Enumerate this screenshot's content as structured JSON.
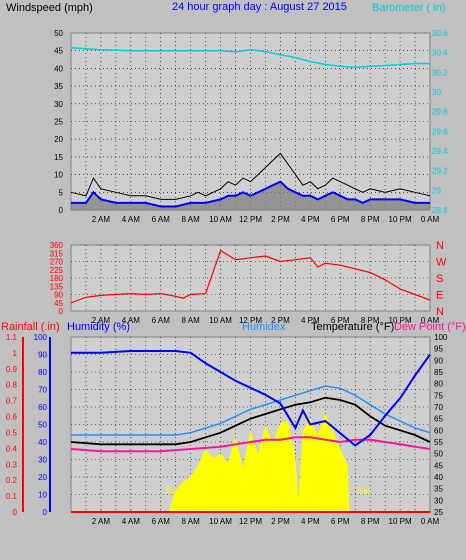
{
  "colors": {
    "background": "#c0c0c0",
    "plot_bg": "#cfcfcf",
    "frame": "#808080",
    "wind_gust": "#000000",
    "wind_avg": "#0000ff",
    "wind_fill": "#7a7a7a",
    "barometer": "#00ced1",
    "direction": "#ff0000",
    "humidity": "#0000ff",
    "humidex": "#1e90ff",
    "temperature": "#000000",
    "dewpoint": "#ff1493",
    "rain": "#ff0000",
    "sun": "#ffff00"
  },
  "header": {
    "left": "Windspeed (mph)",
    "center": "24 hour graph day : August 27 2015",
    "right": "Barometer ( in)"
  },
  "bottom_header": {
    "rainfall": "Rainfall (.in)",
    "humidity": "Humidity (%)",
    "humidex": "Humidex",
    "temperature": "Temperature (°F)",
    "dewpoint": "Dew Point (°F)"
  },
  "annotations": {
    "sunrise": "Sun Rise",
    "sunset": "Set"
  },
  "time_labels": [
    "2 AM",
    "4 AM",
    "6 AM",
    "8 AM",
    "10 AM",
    "12 PM",
    "2 PM",
    "4 PM",
    "6 PM",
    "8 PM",
    "10 PM",
    "0 AM"
  ],
  "chart_data": [
    {
      "type": "line",
      "title": "24 hour graph day : August 27 2015",
      "x_unit": "hours since 0 AM",
      "xlim": [
        0,
        24
      ],
      "left_axis": {
        "label": "Windspeed (mph)",
        "ticks": [
          0,
          5,
          10,
          15,
          20,
          25,
          30,
          35,
          40,
          45,
          50
        ],
        "ylim": [
          0,
          50
        ]
      },
      "right_axis": {
        "label": "Barometer ( in)",
        "ticks": [
          "28.8",
          "29",
          "29.2",
          "29.4",
          "29.6",
          "29.8",
          "30",
          "30.2",
          "30.4",
          "30.6"
        ],
        "ylim": [
          28.8,
          30.6
        ]
      },
      "series": [
        {
          "axis": "left",
          "style": "gust",
          "x": [
            0,
            1,
            1.5,
            2,
            3,
            4,
            5,
            6,
            7,
            8,
            8.5,
            9,
            10,
            10.5,
            11,
            11.5,
            12,
            12.5,
            13,
            13.5,
            14,
            14.5,
            15,
            15.5,
            16,
            16.5,
            17,
            17.5,
            18,
            18.5,
            19,
            19.5,
            20,
            21,
            22,
            23,
            24
          ],
          "y": [
            5,
            4,
            9,
            6,
            5,
            4,
            4,
            3,
            3,
            4,
            5,
            4,
            6,
            8,
            7,
            9,
            8,
            10,
            12,
            14,
            16,
            13,
            10,
            7,
            8,
            6,
            7,
            9,
            8,
            7,
            6,
            5,
            6,
            5,
            6,
            5,
            4
          ]
        },
        {
          "axis": "left",
          "style": "average",
          "x": [
            0,
            1,
            1.5,
            2,
            3,
            4,
            5,
            6,
            7,
            8,
            8.5,
            9,
            10,
            10.5,
            11,
            11.5,
            12,
            12.5,
            13,
            13.5,
            14,
            14.5,
            15,
            15.5,
            16,
            16.5,
            17,
            17.5,
            18,
            18.5,
            19,
            19.5,
            20,
            21,
            22,
            23,
            24
          ],
          "y": [
            2,
            2,
            5,
            3,
            2,
            2,
            2,
            1,
            1,
            2,
            2,
            2,
            3,
            4,
            4,
            5,
            4,
            5,
            6,
            7,
            8,
            6,
            5,
            4,
            4,
            3,
            4,
            5,
            4,
            3,
            3,
            2,
            3,
            3,
            3,
            2,
            2
          ]
        },
        {
          "axis": "right",
          "name": "Barometer",
          "x": [
            0,
            2,
            4,
            6,
            8,
            10,
            11,
            12,
            13,
            14,
            15,
            16,
            17,
            18,
            19,
            20,
            21,
            22,
            23,
            24
          ],
          "y": [
            30.45,
            30.43,
            30.42,
            30.42,
            30.42,
            30.42,
            30.41,
            30.43,
            30.41,
            30.38,
            30.35,
            30.31,
            30.28,
            30.26,
            30.25,
            30.26,
            30.27,
            30.28,
            30.29,
            30.29
          ]
        }
      ]
    },
    {
      "type": "line",
      "name": "Wind Direction",
      "xlim": [
        0,
        24
      ],
      "left_axis": {
        "ticks": [
          0,
          45,
          90,
          135,
          180,
          225,
          270,
          315,
          360
        ],
        "ylim": [
          0,
          360
        ]
      },
      "right_axis": {
        "ticks": [
          "N",
          "E",
          "S",
          "W",
          "N"
        ]
      },
      "series": [
        {
          "name": "Direction",
          "x": [
            0,
            0.5,
            1,
            2,
            3,
            4,
            5,
            6,
            7,
            7.5,
            8,
            9,
            10,
            11,
            12,
            13,
            14,
            15,
            16,
            16.5,
            17,
            18,
            19,
            20,
            21,
            22,
            23,
            24
          ],
          "y": [
            45,
            60,
            75,
            85,
            90,
            95,
            90,
            95,
            80,
            70,
            90,
            95,
            330,
            280,
            290,
            300,
            270,
            280,
            290,
            240,
            260,
            250,
            230,
            210,
            170,
            120,
            90,
            60
          ]
        }
      ]
    },
    {
      "type": "line",
      "xlim": [
        0,
        24
      ],
      "rainfall_axis": {
        "label": "Rainfall (.in)",
        "ticks": [
          "0",
          "0.1",
          "0.2",
          "0.3",
          "0.4",
          "0.5",
          "0.6",
          "0.7",
          "0.8",
          "0.9",
          "1",
          "1.1"
        ],
        "ylim": [
          0,
          1.1
        ]
      },
      "humidity_axis": {
        "label": "Humidity (%)",
        "ticks": [
          0,
          10,
          20,
          30,
          40,
          50,
          60,
          70,
          80,
          90,
          100
        ],
        "ylim": [
          0,
          100
        ]
      },
      "temperature_axis": {
        "label": "Temperature (°F)",
        "ticks": [
          25,
          30,
          35,
          40,
          45,
          50,
          55,
          60,
          65,
          70,
          75,
          80,
          85,
          90,
          95,
          100
        ],
        "ylim": [
          25,
          100
        ]
      },
      "series": [
        {
          "name": "Humidity",
          "axis": "humidity",
          "x": [
            0,
            2,
            4,
            6,
            7,
            8,
            9,
            10,
            11,
            12,
            13,
            14,
            14.5,
            15,
            15.5,
            16,
            17,
            18,
            19,
            20,
            21,
            22,
            23,
            24
          ],
          "y": [
            91,
            91,
            92,
            92,
            92,
            91,
            85,
            80,
            75,
            71,
            67,
            62,
            55,
            48,
            58,
            50,
            52,
            45,
            38,
            44,
            55,
            65,
            78,
            90
          ]
        },
        {
          "name": "Humidex",
          "axis": "temperature",
          "x": [
            0,
            2,
            4,
            6,
            7,
            8,
            9,
            10,
            11,
            12,
            13,
            14,
            15,
            16,
            17,
            18,
            19,
            20,
            21,
            22,
            23,
            24
          ],
          "y": [
            58,
            58,
            58,
            58,
            58,
            59,
            61,
            63,
            66,
            69,
            71,
            73,
            75,
            77,
            79,
            78,
            75,
            71,
            67,
            64,
            61,
            59
          ]
        },
        {
          "name": "Temperature",
          "axis": "temperature",
          "x": [
            0,
            2,
            4,
            6,
            7,
            8,
            9,
            10,
            11,
            12,
            13,
            14,
            15,
            16,
            17,
            18,
            19,
            20,
            21,
            22,
            23,
            24
          ],
          "y": [
            55,
            54,
            54,
            54,
            54,
            55,
            57,
            59,
            62,
            65,
            67,
            69,
            71,
            72,
            74,
            73,
            71,
            66,
            62,
            60,
            58,
            55
          ]
        },
        {
          "name": "Dew Point",
          "axis": "temperature",
          "x": [
            0,
            2,
            4,
            6,
            8,
            10,
            11,
            12,
            13,
            14,
            15,
            16,
            17,
            18,
            19,
            20,
            21,
            22,
            23,
            24
          ],
          "y": [
            52,
            51,
            51,
            51,
            52,
            53,
            54,
            55,
            56,
            56,
            57,
            57,
            56,
            55,
            56,
            56,
            55,
            54,
            53,
            52
          ]
        },
        {
          "name": "Rainfall",
          "axis": "rainfall",
          "x": [
            0,
            24
          ],
          "y": [
            0,
            0
          ]
        },
        {
          "name": "Solar",
          "style": "fill",
          "axis": "temperature",
          "x": [
            6.5,
            7,
            7.5,
            8,
            8.5,
            9,
            9.5,
            10,
            10.5,
            11,
            11.5,
            12,
            12.5,
            13,
            13.5,
            14,
            14.5,
            15,
            15.2,
            15.5,
            16,
            16.5,
            17,
            17.5,
            18,
            18.5,
            18.6
          ],
          "y": [
            25,
            34,
            38,
            40,
            45,
            52,
            48,
            50,
            46,
            57,
            44,
            60,
            50,
            62,
            55,
            63,
            64,
            48,
            30,
            60,
            65,
            58,
            67,
            60,
            52,
            45,
            25
          ]
        }
      ]
    }
  ]
}
